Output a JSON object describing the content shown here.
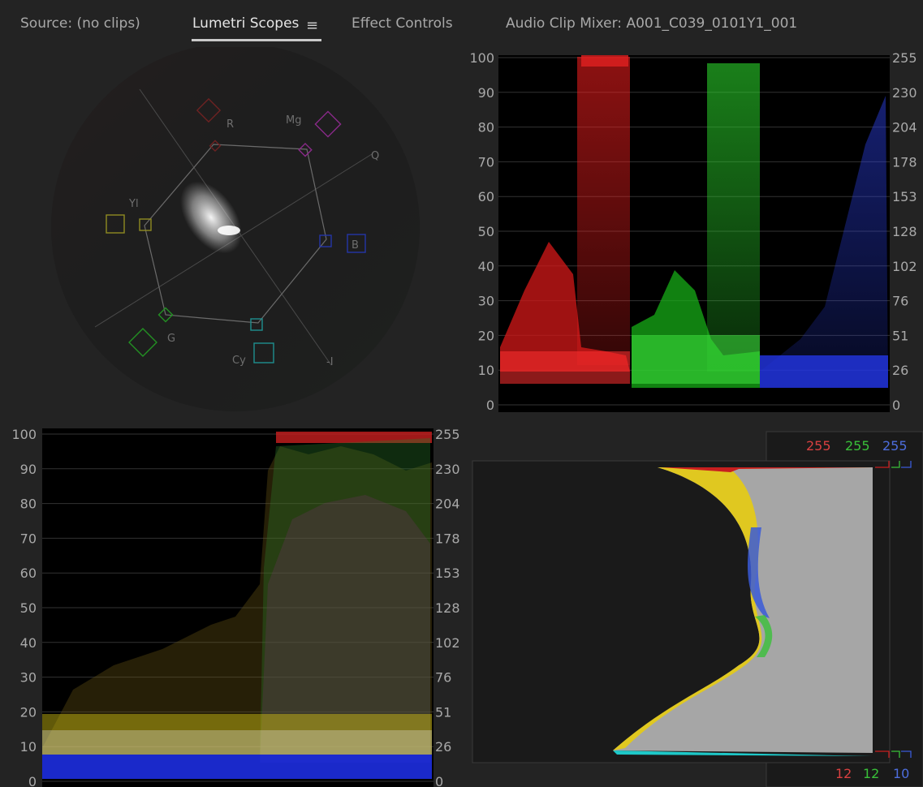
{
  "tabs": [
    {
      "label": "Source: (no clips)",
      "active": false
    },
    {
      "label": "Lumetri Scopes",
      "active": true
    },
    {
      "label": "Effect Controls",
      "active": false
    },
    {
      "label": "Audio Clip Mixer: A001_C039_0101Y1_001",
      "active": false
    }
  ],
  "menu_icon": "hamburger-menu-icon",
  "vectorscope": {
    "targets": [
      "R",
      "Mg",
      "B",
      "Cy",
      "G",
      "Yl"
    ],
    "axis_labels": [
      "Q",
      "-I"
    ]
  },
  "parade": {
    "left_scale": [
      "100",
      "90",
      "80",
      "70",
      "60",
      "50",
      "40",
      "30",
      "20",
      "10",
      "0"
    ],
    "right_scale": [
      "255",
      "230",
      "204",
      "178",
      "153",
      "128",
      "102",
      "76",
      "51",
      "26",
      "0"
    ],
    "channels": [
      "red",
      "green",
      "blue"
    ]
  },
  "waveform": {
    "left_scale": [
      "100",
      "90",
      "80",
      "70",
      "60",
      "50",
      "40",
      "30",
      "20",
      "10",
      "0"
    ],
    "right_scale": [
      "255",
      "230",
      "204",
      "178",
      "153",
      "128",
      "102",
      "76",
      "51",
      "26",
      "0"
    ]
  },
  "histogram": {
    "top_values": [
      "255",
      "255",
      "255"
    ],
    "bottom_values": [
      "12",
      "12",
      "10"
    ]
  },
  "colors": {
    "red": "#e33a3a",
    "green": "#39d639",
    "blue": "#3b5bdc",
    "yellow": "#e8d21d",
    "gray": "#a9a9a9"
  }
}
